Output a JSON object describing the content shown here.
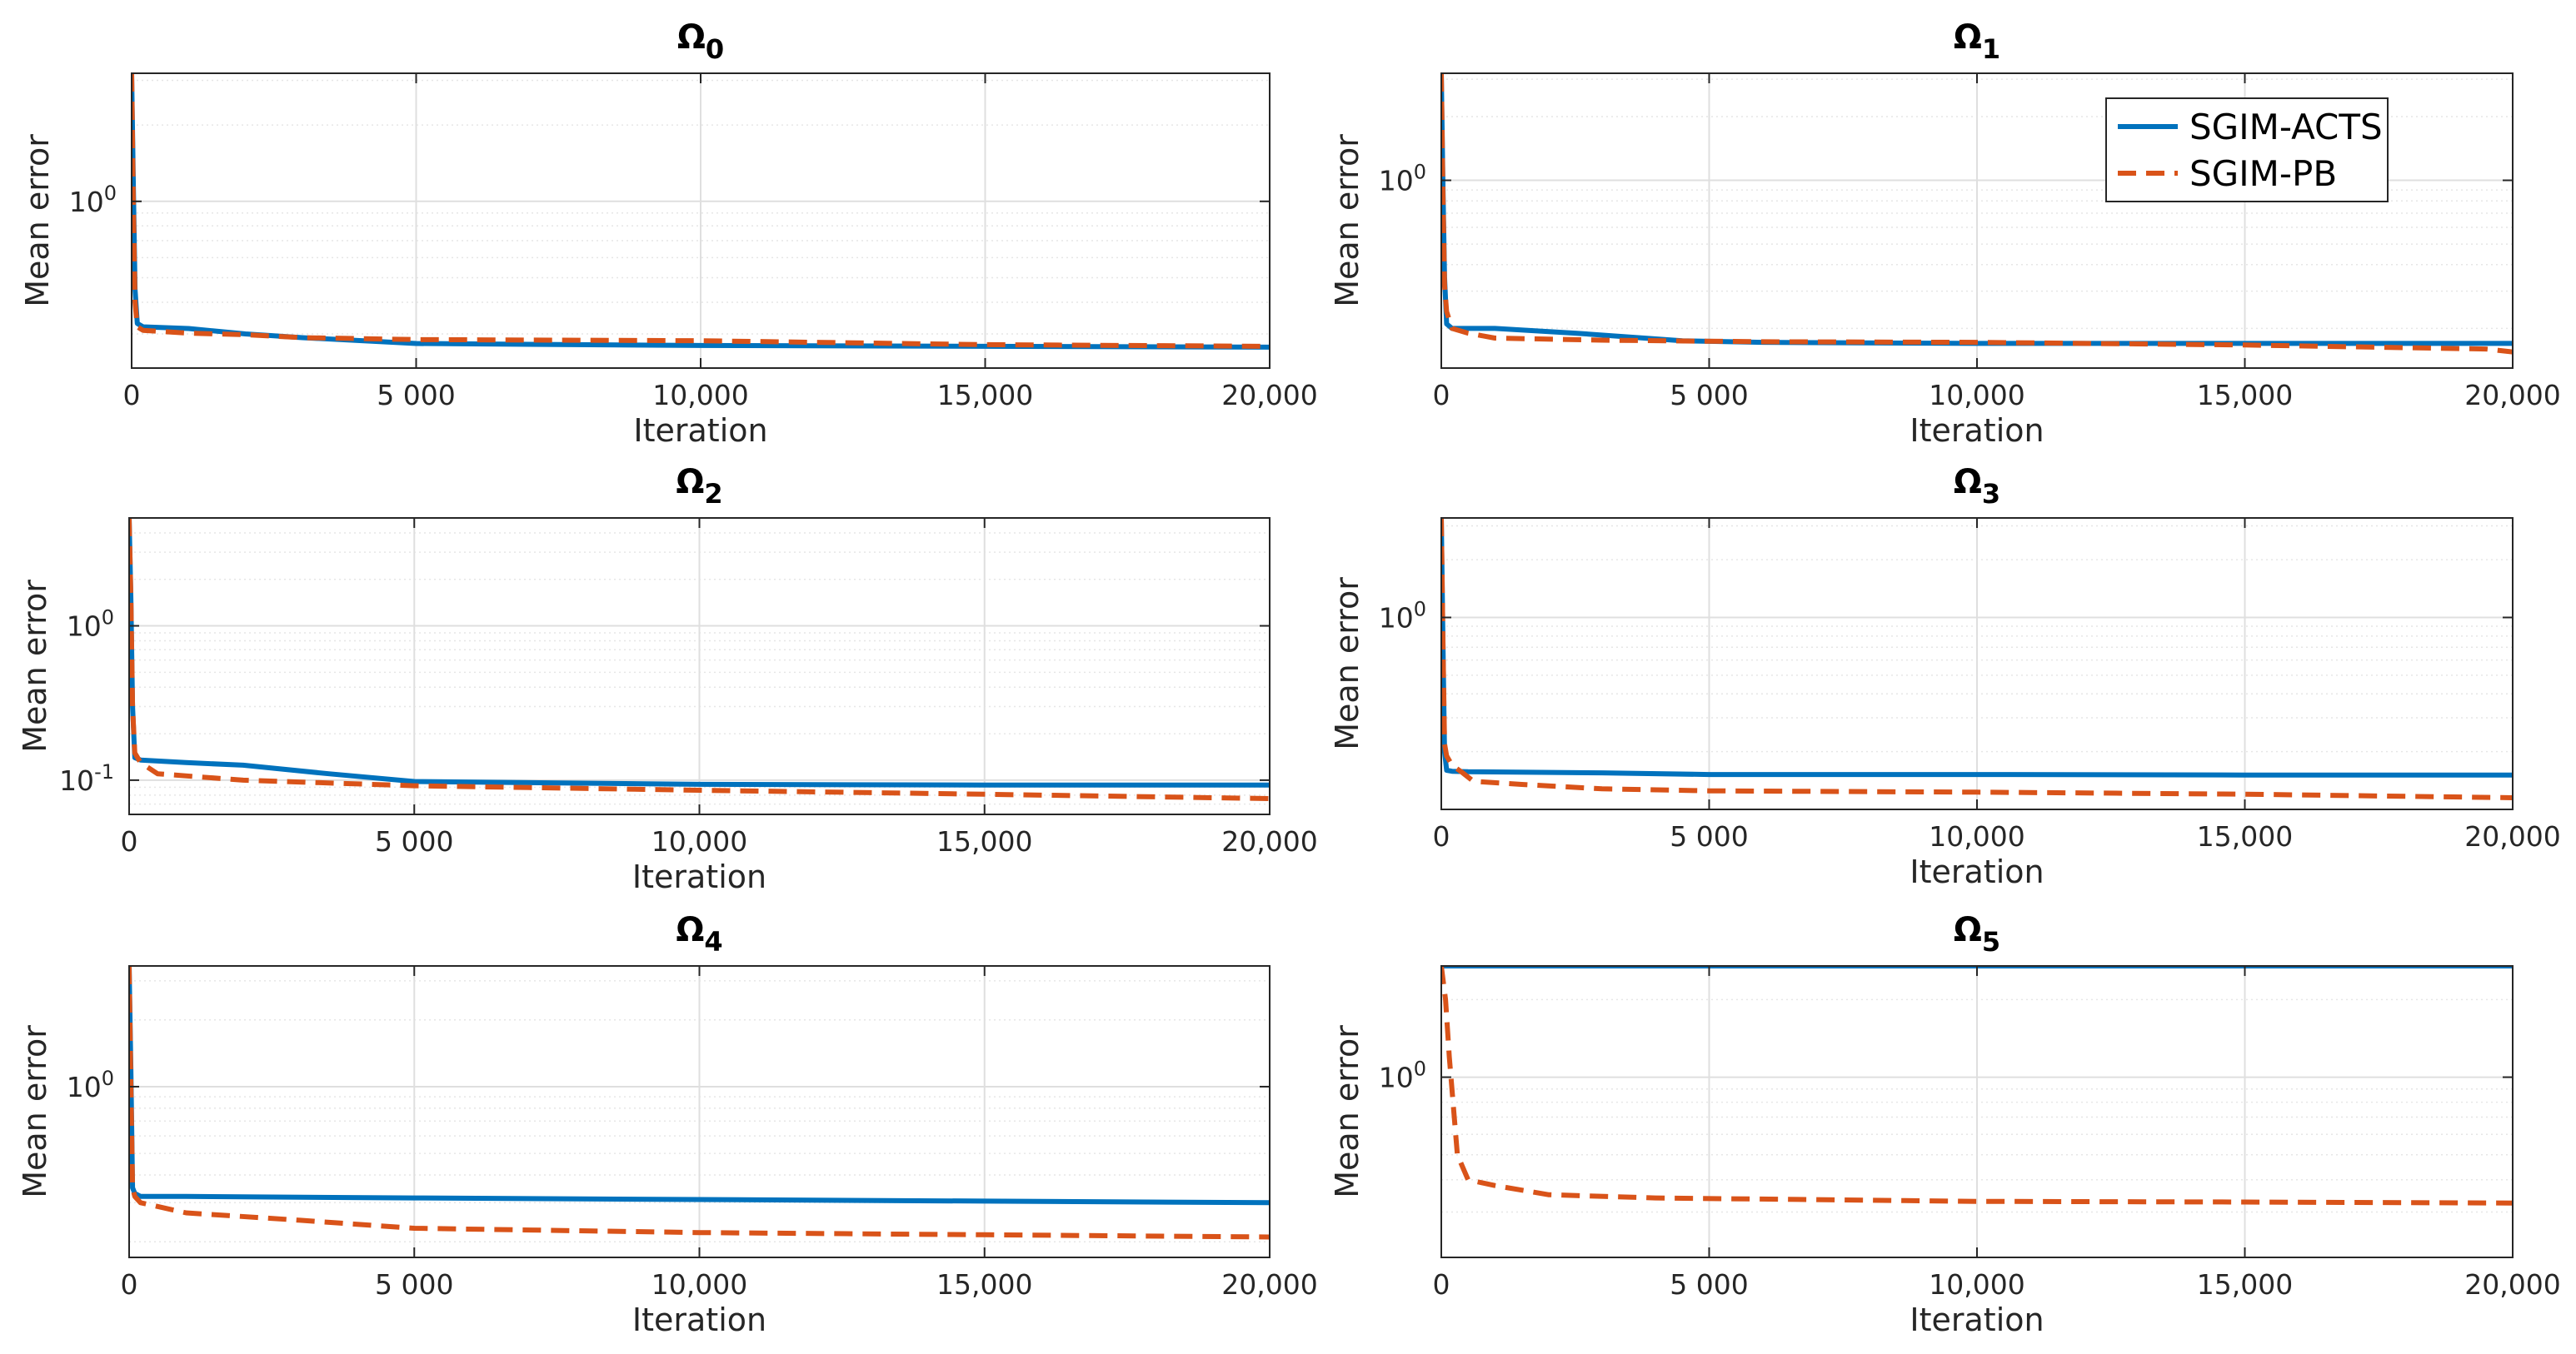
{
  "colors": {
    "acts": "#0072BD",
    "pb": "#D95319",
    "grid": "#DFDFDF",
    "minor_grid": "#E6E6E6",
    "axis": "#262626"
  },
  "legend": {
    "placement": "top-right of panel Ω1",
    "entries": [
      "SGIM-ACTS",
      "SGIM-PB"
    ]
  },
  "chart_data": [
    {
      "type": "line",
      "title": "Ω",
      "subscript": "0",
      "xlabel": "Iteration",
      "ylabel": "Mean error",
      "yscale": "log",
      "xlim": [
        0,
        20000
      ],
      "ylim": [
        0.22,
        3.2
      ],
      "grid": true,
      "xticks": [
        0,
        5000,
        10000,
        15000,
        20000
      ],
      "xtick_labels": [
        "0",
        "5 000",
        "10,000",
        "15,000",
        "20,000"
      ],
      "yticks": [
        1
      ],
      "ytick_labels": [
        "10^0"
      ],
      "series": [
        {
          "name": "SGIM-ACTS",
          "x": [
            0,
            30,
            60,
            100,
            200,
            1000,
            2000,
            3000,
            5000,
            10000,
            15000,
            20000
          ],
          "y": [
            3.2,
            1.2,
            0.45,
            0.33,
            0.32,
            0.315,
            0.3,
            0.29,
            0.275,
            0.27,
            0.268,
            0.266
          ]
        },
        {
          "name": "SGIM-PB",
          "x": [
            0,
            30,
            60,
            100,
            200,
            1000,
            2000,
            3000,
            5000,
            10000,
            15000,
            20000
          ],
          "y": [
            3.2,
            1.0,
            0.4,
            0.32,
            0.31,
            0.302,
            0.298,
            0.29,
            0.285,
            0.282,
            0.272,
            0.268
          ]
        }
      ]
    },
    {
      "type": "line",
      "title": "Ω",
      "subscript": "1",
      "xlabel": "Iteration",
      "ylabel": "Mean error",
      "yscale": "log",
      "xlim": [
        0,
        20000
      ],
      "ylim": [
        0.13,
        3.2
      ],
      "grid": true,
      "xticks": [
        0,
        5000,
        10000,
        15000,
        20000
      ],
      "xtick_labels": [
        "0",
        "5 000",
        "10,000",
        "15,000",
        "20,000"
      ],
      "yticks": [
        1
      ],
      "ytick_labels": [
        "10^0"
      ],
      "series": [
        {
          "name": "SGIM-ACTS",
          "x": [
            0,
            30,
            60,
            100,
            200,
            1000,
            2500,
            4500,
            6000,
            10000,
            15000,
            20000
          ],
          "y": [
            3.2,
            1.0,
            0.35,
            0.21,
            0.2,
            0.2,
            0.19,
            0.175,
            0.172,
            0.17,
            0.17,
            0.17
          ]
        },
        {
          "name": "SGIM-PB",
          "x": [
            0,
            30,
            60,
            100,
            200,
            500,
            1000,
            3000,
            6000,
            10000,
            15000,
            19500,
            20000
          ],
          "y": [
            3.2,
            0.9,
            0.32,
            0.24,
            0.2,
            0.19,
            0.18,
            0.176,
            0.173,
            0.172,
            0.167,
            0.16,
            0.155
          ]
        }
      ]
    },
    {
      "type": "line",
      "title": "Ω",
      "subscript": "2",
      "xlabel": "Iteration",
      "ylabel": "Mean error",
      "yscale": "log",
      "xlim": [
        0,
        20000
      ],
      "ylim": [
        0.06,
        5
      ],
      "grid": true,
      "xticks": [
        0,
        5000,
        10000,
        15000,
        20000
      ],
      "xtick_labels": [
        "0",
        "5 000",
        "10,000",
        "15,000",
        "20,000"
      ],
      "yticks": [
        1,
        0.1
      ],
      "ytick_labels": [
        "10^0",
        "10^-1"
      ],
      "series": [
        {
          "name": "SGIM-ACTS",
          "x": [
            0,
            30,
            60,
            100,
            200,
            1000,
            2000,
            3500,
            5000,
            10000,
            15000,
            20000
          ],
          "y": [
            5,
            1.5,
            0.3,
            0.14,
            0.135,
            0.13,
            0.125,
            0.11,
            0.098,
            0.094,
            0.093,
            0.093
          ]
        },
        {
          "name": "SGIM-PB",
          "x": [
            0,
            30,
            60,
            100,
            200,
            500,
            2000,
            5000,
            10000,
            15000,
            20000
          ],
          "y": [
            5,
            1.5,
            0.3,
            0.15,
            0.13,
            0.11,
            0.1,
            0.092,
            0.086,
            0.081,
            0.076
          ]
        }
      ]
    },
    {
      "type": "line",
      "title": "Ω",
      "subscript": "3",
      "xlabel": "Iteration",
      "ylabel": "Mean error",
      "yscale": "log",
      "xlim": [
        0,
        20000
      ],
      "ylim": [
        0.1,
        3.3
      ],
      "grid": true,
      "xticks": [
        0,
        5000,
        10000,
        15000,
        20000
      ],
      "xtick_labels": [
        "0",
        "5 000",
        "10,000",
        "15,000",
        "20,000"
      ],
      "yticks": [
        1
      ],
      "ytick_labels": [
        "10^0"
      ],
      "series": [
        {
          "name": "SGIM-ACTS",
          "x": [
            0,
            30,
            60,
            100,
            200,
            500,
            3000,
            5000,
            10000,
            15000,
            20000
          ],
          "y": [
            3.3,
            0.8,
            0.2,
            0.16,
            0.158,
            0.157,
            0.155,
            0.152,
            0.152,
            0.151,
            0.151
          ]
        },
        {
          "name": "SGIM-PB",
          "x": [
            0,
            30,
            60,
            100,
            200,
            400,
            600,
            1500,
            3000,
            5000,
            10000,
            15000,
            20000
          ],
          "y": [
            3.3,
            0.8,
            0.22,
            0.19,
            0.17,
            0.155,
            0.14,
            0.135,
            0.128,
            0.125,
            0.123,
            0.12,
            0.115
          ]
        }
      ]
    },
    {
      "type": "line",
      "title": "Ω",
      "subscript": "4",
      "xlabel": "Iteration",
      "ylabel": "Mean error",
      "yscale": "log",
      "xlim": [
        0,
        20000
      ],
      "ylim": [
        0.17,
        3.5
      ],
      "grid": true,
      "xticks": [
        0,
        5000,
        10000,
        15000,
        20000
      ],
      "xtick_labels": [
        "0",
        "5 000",
        "10,000",
        "15,000",
        "20,000"
      ],
      "yticks": [
        1
      ],
      "ytick_labels": [
        "10^0"
      ],
      "series": [
        {
          "name": "SGIM-ACTS",
          "x": [
            0,
            30,
            60,
            100,
            200,
            1000,
            5000,
            10000,
            15000,
            20000
          ],
          "y": [
            3.5,
            1.2,
            0.35,
            0.33,
            0.32,
            0.32,
            0.315,
            0.31,
            0.305,
            0.3
          ]
        },
        {
          "name": "SGIM-PB",
          "x": [
            0,
            30,
            60,
            100,
            200,
            1000,
            3000,
            5000,
            10000,
            15000,
            20000
          ],
          "y": [
            3.5,
            1.0,
            0.35,
            0.32,
            0.3,
            0.27,
            0.25,
            0.23,
            0.22,
            0.215,
            0.21
          ]
        }
      ]
    },
    {
      "type": "line",
      "title": "Ω",
      "subscript": "5",
      "xlabel": "Iteration",
      "ylabel": "Mean error",
      "yscale": "log",
      "xlim": [
        0,
        20000
      ],
      "ylim": [
        0.2,
        2.7
      ],
      "grid": true,
      "xticks": [
        0,
        5000,
        10000,
        15000,
        20000
      ],
      "xtick_labels": [
        "0",
        "5 000",
        "10,000",
        "15,000",
        "20,000"
      ],
      "yticks": [
        1
      ],
      "ytick_labels": [
        "10^0"
      ],
      "series": [
        {
          "name": "SGIM-ACTS",
          "x": [
            0,
            20000
          ],
          "y": [
            2.7,
            2.7
          ]
        },
        {
          "name": "SGIM-PB",
          "x": [
            0,
            80,
            150,
            300,
            500,
            1000,
            2000,
            4000,
            10000,
            15000,
            20000
          ],
          "y": [
            2.7,
            2.0,
            1.2,
            0.5,
            0.4,
            0.38,
            0.35,
            0.34,
            0.33,
            0.328,
            0.325
          ]
        }
      ]
    }
  ]
}
